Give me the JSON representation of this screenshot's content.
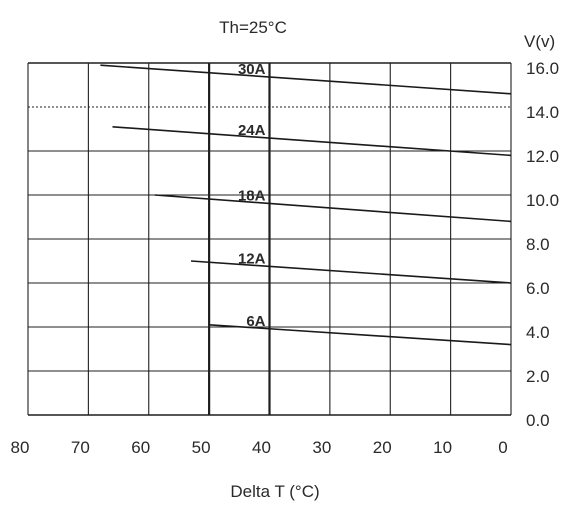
{
  "chart_data": {
    "type": "line",
    "title": "Th=25°C",
    "xlabel": "Delta T (°C)",
    "ylabel": "V(v)",
    "x_reversed": true,
    "xlim": [
      0,
      80
    ],
    "ylim": [
      0,
      16
    ],
    "x_ticks": [
      "80",
      "70",
      "60",
      "50",
      "40",
      "30",
      "20",
      "10",
      "0"
    ],
    "y_ticks": [
      "16.0",
      "14.0",
      "12.0",
      "10.0",
      "8.0",
      "6.0",
      "4.0",
      "2.0",
      "0.0"
    ],
    "grid": true,
    "series": [
      {
        "name": "30A",
        "x": [
          68,
          0
        ],
        "y": [
          15.9,
          14.6
        ]
      },
      {
        "name": "24A",
        "x": [
          66,
          0
        ],
        "y": [
          13.1,
          11.8
        ]
      },
      {
        "name": "18A",
        "x": [
          59,
          0
        ],
        "y": [
          10.0,
          8.8
        ]
      },
      {
        "name": "12A",
        "x": [
          53,
          0
        ],
        "y": [
          7.0,
          6.0
        ]
      },
      {
        "name": "6A",
        "x": [
          50,
          0
        ],
        "y": [
          4.1,
          3.2
        ]
      }
    ],
    "colors": {
      "line": "#1a1a1a",
      "grid": "#1f1f1f",
      "text": "#2a2a2a"
    }
  }
}
